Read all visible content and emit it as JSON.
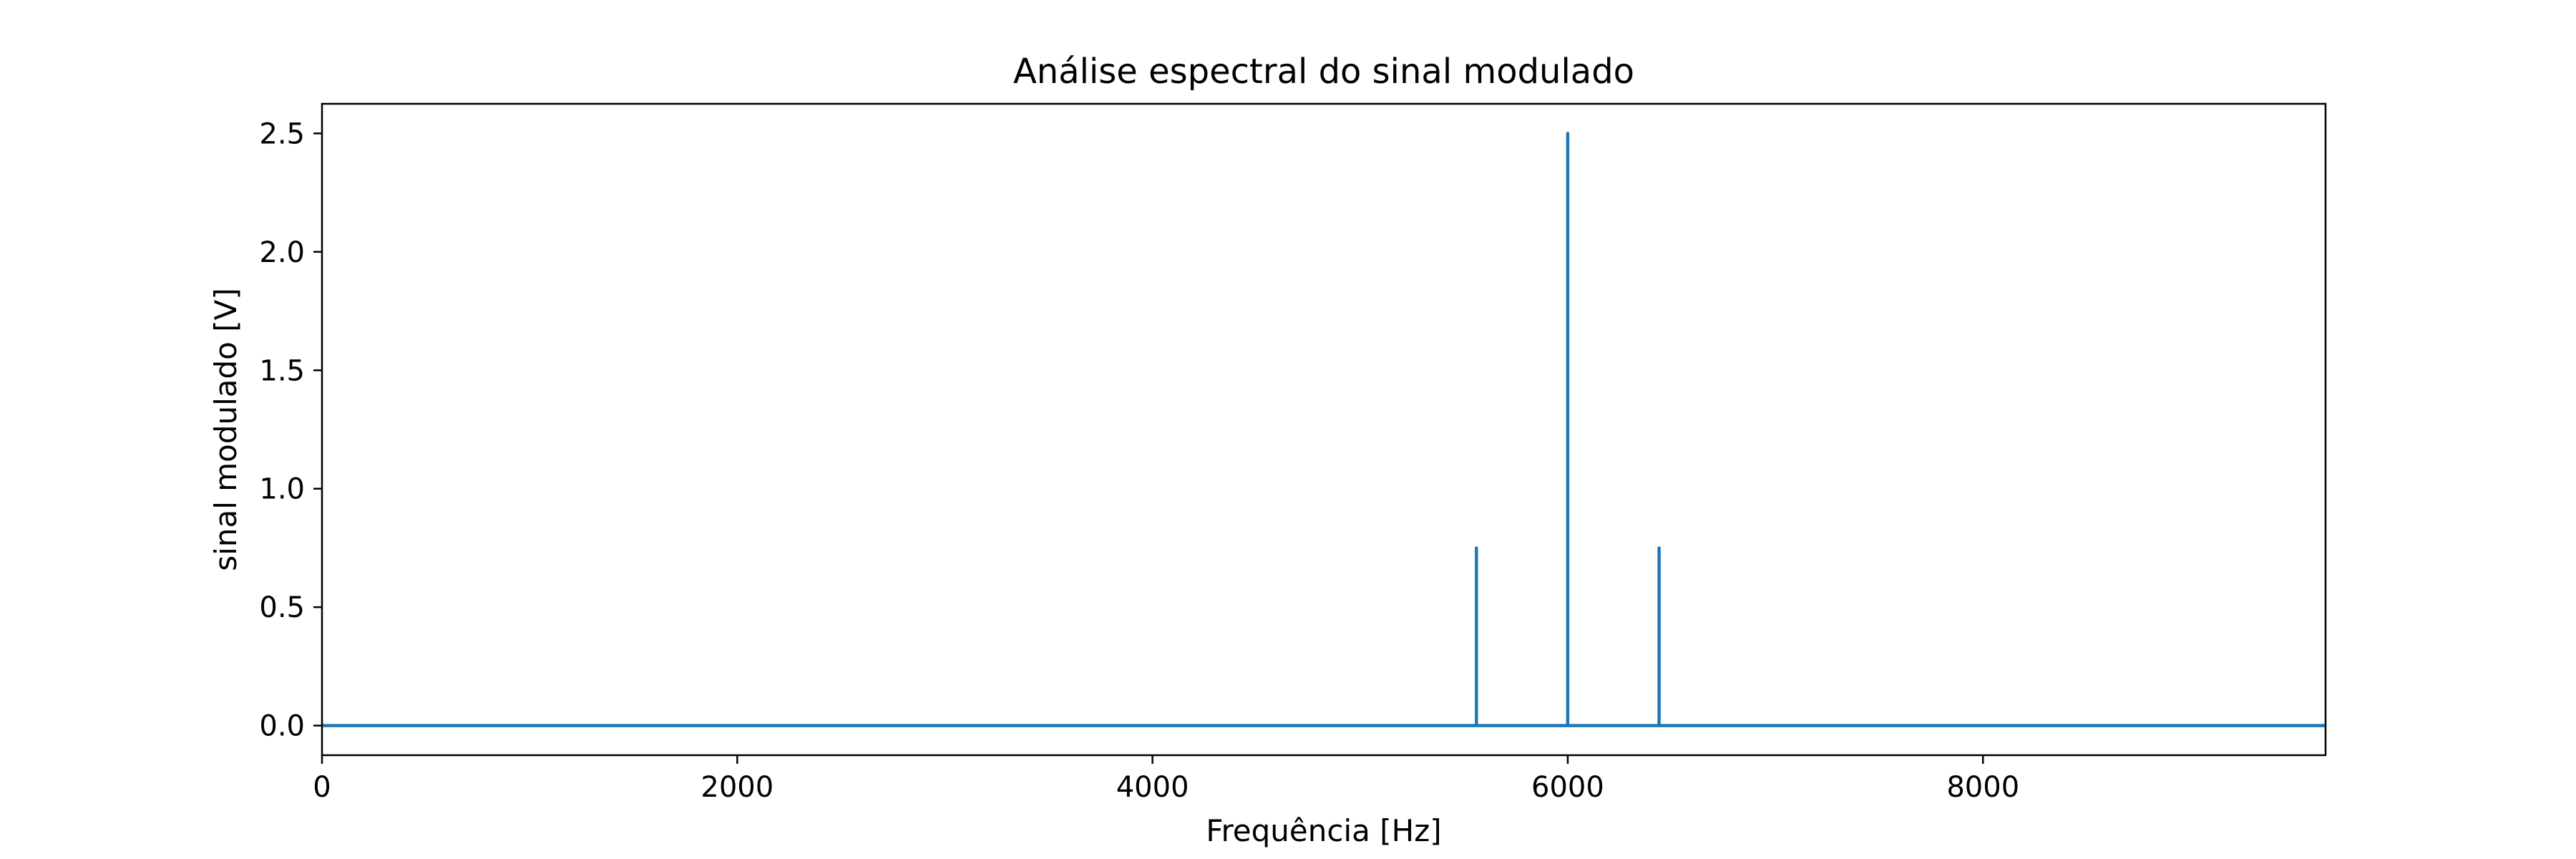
{
  "chart_data": {
    "type": "line",
    "title": "Análise espectral do sinal modulado",
    "xlabel": "Frequência [Hz]",
    "ylabel": "sinal modulado [V]",
    "xlim": [
      0,
      9650
    ],
    "ylim": [
      -0.125,
      2.625
    ],
    "x_ticks": [
      0,
      2000,
      4000,
      6000,
      8000
    ],
    "x_tick_labels": [
      "0",
      "2000",
      "4000",
      "6000",
      "8000"
    ],
    "y_ticks": [
      0.0,
      0.5,
      1.0,
      1.5,
      2.0,
      2.5
    ],
    "y_tick_labels": [
      "0.0",
      "0.5",
      "1.0",
      "1.5",
      "2.0",
      "2.5"
    ],
    "grid": false,
    "series": [
      {
        "color": "#1f77b4",
        "x": [
          0,
          5560,
          5560,
          5560,
          6000,
          6000,
          6000,
          6440,
          6440,
          6440,
          9650
        ],
        "y": [
          0,
          0,
          0.75,
          0,
          0,
          2.5,
          0,
          0,
          0.75,
          0,
          0
        ]
      }
    ]
  }
}
